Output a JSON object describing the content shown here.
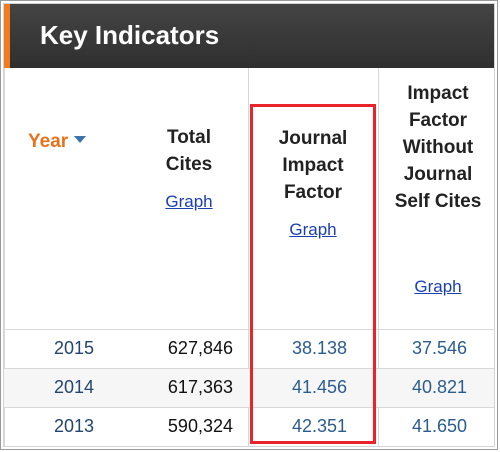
{
  "header": {
    "title": "Key Indicators"
  },
  "columns": {
    "year": {
      "label": "Year",
      "sort_icon": "sort-down-icon"
    },
    "total_cites": {
      "label_line1": "Total",
      "label_line2": "Cites",
      "graph": "Graph"
    },
    "jif": {
      "label_line1": "Journal",
      "label_line2": "Impact",
      "label_line3": "Factor",
      "graph": "Graph"
    },
    "jif_no_self": {
      "label_line1": "Impact",
      "label_line2": "Factor",
      "label_line3": "Without",
      "label_line4": "Journal",
      "label_line5": "Self Cites",
      "graph": "Graph"
    }
  },
  "rows": [
    {
      "year": "2015",
      "total_cites": "627,846",
      "jif": "38.138",
      "jif_no_self": "37.546"
    },
    {
      "year": "2014",
      "total_cites": "617,363",
      "jif": "41.456",
      "jif_no_self": "40.821"
    },
    {
      "year": "2013",
      "total_cites": "590,324",
      "jif": "42.351",
      "jif_no_self": "41.650"
    }
  ],
  "colors": {
    "accent": "#f47a1e",
    "highlight": "#e8232a",
    "link": "#1a3fb0"
  }
}
